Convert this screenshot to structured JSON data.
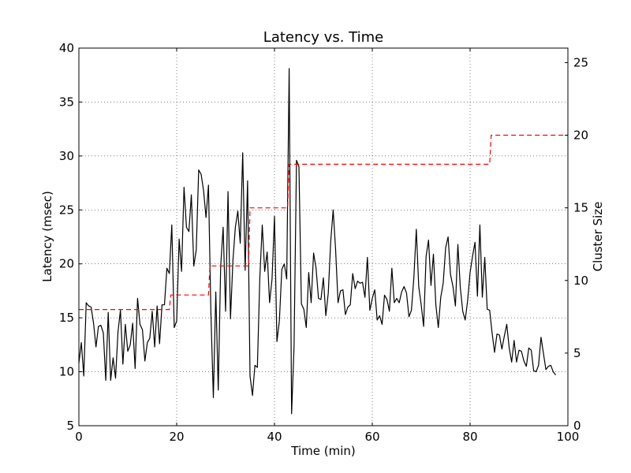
{
  "chart_data": {
    "type": "line",
    "title": "Latency vs. Time",
    "xlabel": "Time (min)",
    "ylabel": "Latency (msec)",
    "y2label": "Cluster Size",
    "xlim": [
      0,
      100
    ],
    "ylim": [
      5,
      40
    ],
    "y2lim": [
      0,
      26
    ],
    "xticks": [
      0,
      20,
      40,
      60,
      80,
      100
    ],
    "yticks": [
      5,
      10,
      15,
      20,
      25,
      30,
      35,
      40
    ],
    "y2ticks": [
      0,
      5,
      10,
      15,
      20,
      25
    ],
    "grid": true,
    "series": [
      {
        "axis": "left",
        "color": "#000000",
        "style": "solid",
        "x": [
          0,
          0.5,
          1,
          1.5,
          2,
          2.5,
          3,
          3.5,
          4,
          4.5,
          5,
          5.5,
          6,
          6.5,
          7,
          7.5,
          8,
          8.5,
          9,
          9.5,
          10,
          10.5,
          11,
          11.5,
          12,
          12.5,
          13,
          13.5,
          14,
          14.5,
          15,
          15.5,
          16,
          16.5,
          17,
          17.5,
          18,
          18.5,
          19,
          19.5,
          20,
          20.5,
          21,
          21.5,
          22,
          22.5,
          23,
          23.5,
          24,
          24.5,
          25,
          25.5,
          26,
          26.5,
          27,
          27.5,
          28,
          28.5,
          29,
          29.5,
          30,
          30.5,
          31,
          31.5,
          32,
          32.5,
          33,
          33.5,
          34,
          34.5,
          35,
          35.5,
          36,
          36.5,
          37,
          37.5,
          38,
          38.5,
          39,
          39.5,
          40,
          40.5,
          41,
          41.5,
          42,
          42.5,
          43,
          43.5,
          44,
          44.5,
          45,
          45.5,
          46,
          46.5,
          47,
          47.5,
          48,
          48.5,
          49,
          49.5,
          50,
          50.5,
          51,
          51.5,
          52,
          52.5,
          53,
          53.5,
          54,
          54.5,
          55,
          55.5,
          56,
          56.5,
          57,
          57.5,
          58,
          58.5,
          59,
          59.5,
          60,
          60.5,
          61,
          61.5,
          62,
          62.5,
          63,
          63.5,
          64,
          64.5,
          65,
          65.5,
          66,
          66.5,
          67,
          67.5,
          68,
          68.5,
          69,
          69.5,
          70,
          70.5,
          71,
          71.5,
          72,
          72.5,
          73,
          73.5,
          74,
          74.5,
          75,
          75.5,
          76,
          76.5,
          77,
          77.5,
          78,
          78.5,
          79,
          79.5,
          80,
          80.5,
          81,
          81.5,
          82,
          82.5,
          83,
          83.5,
          84,
          84.5,
          85,
          85.5,
          86,
          86.5,
          87,
          87.5,
          88,
          88.5,
          89,
          89.5,
          90,
          90.5,
          91,
          91.5,
          92,
          92.5,
          93,
          93.5,
          94,
          94.5,
          95,
          95.5,
          96,
          96.5,
          97,
          97.5
        ],
        "values": [
          10.8,
          12.7,
          9.6,
          16.4,
          16.1,
          16.0,
          14.5,
          12.3,
          14.2,
          14.3,
          13.6,
          9.2,
          15.5,
          9.2,
          11.3,
          9.4,
          13.7,
          15.7,
          10.7,
          14.4,
          11.9,
          12.5,
          14.5,
          10.3,
          16.8,
          14.4,
          13.9,
          11.0,
          12.7,
          13.1,
          15.6,
          12.3,
          16.1,
          12.6,
          16.2,
          16.2,
          19.6,
          19.1,
          23.6,
          14.1,
          14.7,
          22.3,
          19.3,
          27.1,
          23.4,
          23.0,
          26.4,
          19.8,
          21.3,
          28.7,
          28.3,
          26.8,
          24.3,
          27.3,
          15.4,
          7.6,
          17.4,
          8.3,
          19.8,
          23.4,
          15.6,
          26.7,
          14.9,
          20.3,
          23.4,
          24.9,
          21.9,
          30.3,
          19.4,
          27.7,
          9.6,
          7.8,
          10.6,
          10.4,
          18.7,
          23.6,
          19.3,
          21.1,
          16.4,
          18.6,
          24.4,
          12.8,
          14.7,
          19.5,
          20.0,
          18.6,
          38.1,
          6.1,
          12.3,
          29.6,
          29.0,
          16.3,
          15.8,
          14.1,
          19.2,
          16.4,
          21.0,
          19.6,
          16.8,
          16.7,
          18.7,
          15.2,
          17.3,
          22.1,
          25.0,
          21.3,
          16.4,
          17.5,
          17.6,
          15.3,
          16.0,
          16.2,
          19.1,
          17.7,
          18.4,
          18.2,
          18.3,
          16.9,
          20.6,
          15.7,
          16.8,
          17.6,
          14.8,
          15.2,
          14.4,
          17.1,
          16.7,
          15.6,
          19.6,
          16.4,
          16.8,
          16.4,
          17.4,
          17.9,
          17.3,
          15.1,
          15.7,
          18.7,
          23.2,
          17.9,
          16.2,
          14.2,
          20.7,
          22.2,
          18.0,
          20.9,
          16.2,
          14.1,
          16.9,
          18.2,
          21.5,
          22.5,
          19.0,
          17.9,
          16.1,
          21.8,
          17.8,
          15.6,
          14.8,
          16.6,
          19.2,
          20.7,
          22.0,
          17.0,
          23.6,
          16.9,
          20.6,
          15.8,
          15.7,
          13.6,
          11.8,
          13.5,
          13.4,
          12.1,
          13.3,
          14.4,
          12.2,
          10.9,
          12.9,
          10.9,
          12.0,
          11.9,
          11.0,
          10.5,
          12.2,
          12.0,
          10.1,
          10.0,
          10.6,
          13.2,
          11.7,
          10.2,
          10.5,
          10.6,
          10.0,
          9.7
        ]
      },
      {
        "axis": "right",
        "color": "#ff0000",
        "style": "dashed",
        "x": [
          0,
          18.5,
          18.8,
          26.5,
          26.8,
          34.7,
          35.0,
          42.7,
          43.0,
          84.0,
          84.3,
          100
        ],
        "values": [
          8,
          8,
          9,
          9,
          11,
          11,
          15,
          15,
          18,
          18,
          20,
          20
        ]
      }
    ]
  }
}
